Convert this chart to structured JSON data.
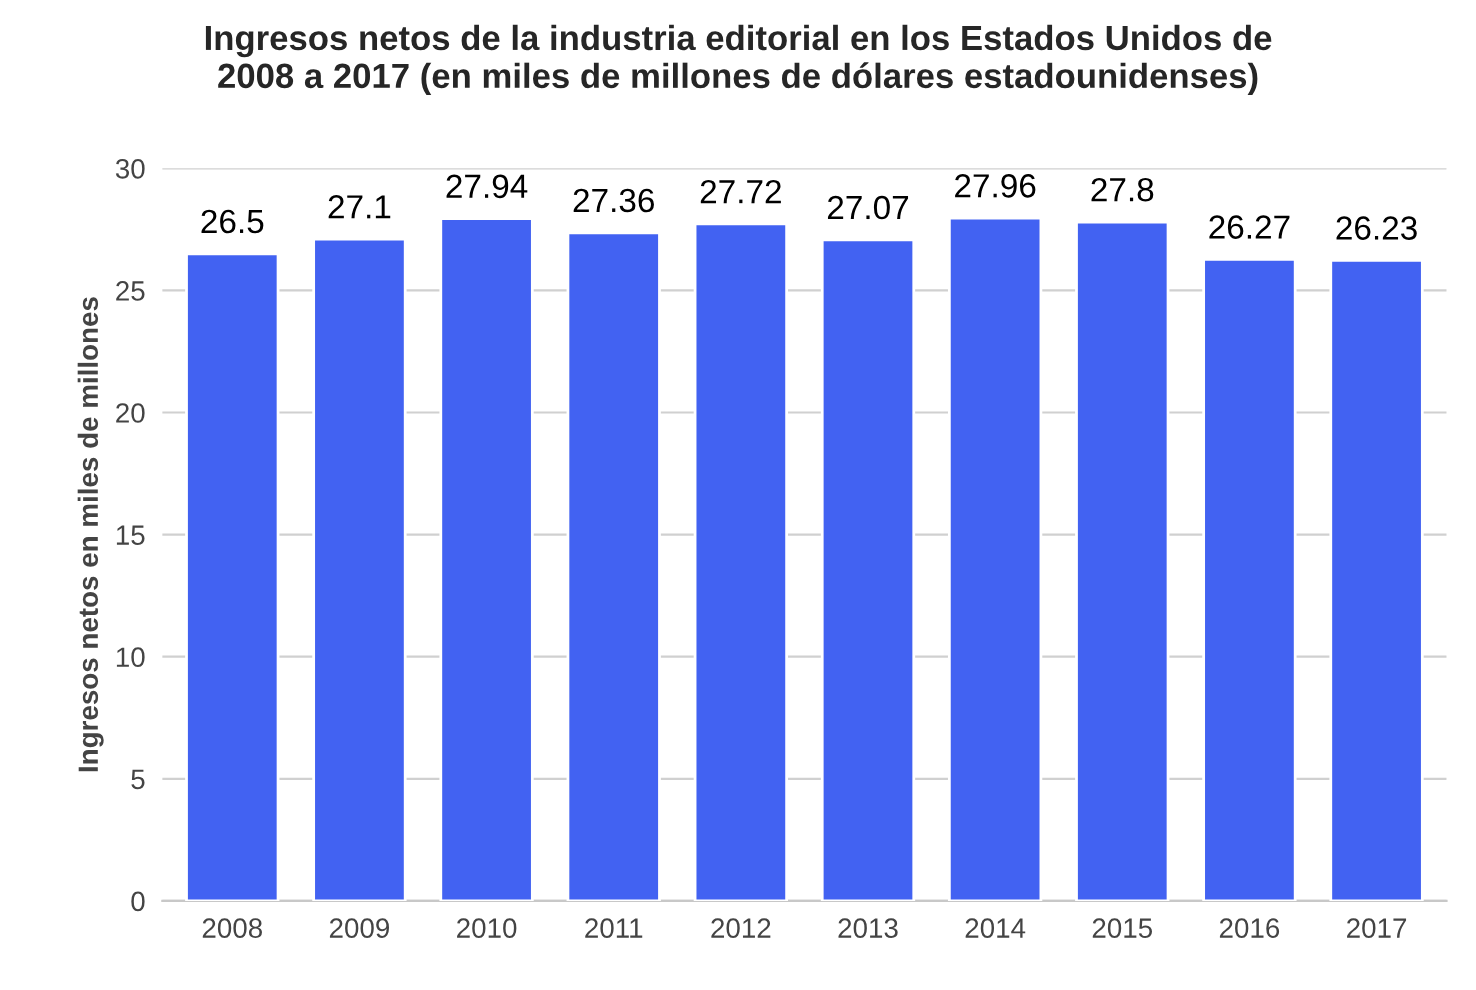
{
  "chart_data": {
    "type": "bar",
    "title": "Ingresos netos de la industria editorial en los Estados Unidos de\n2008 a 2017 (en miles de millones de dólares estadounidenses)",
    "ylabel": "Ingresos netos en miles de millones",
    "categories": [
      "2008",
      "2009",
      "2010",
      "2011",
      "2012",
      "2013",
      "2014",
      "2015",
      "2016",
      "2017"
    ],
    "values": [
      26.5,
      27.1,
      27.94,
      27.36,
      27.72,
      27.07,
      27.96,
      27.8,
      26.27,
      26.23
    ],
    "color": "#4262f2",
    "ylim": [
      0,
      30
    ],
    "yticks": [
      0,
      5,
      10,
      15,
      20,
      25,
      30
    ],
    "grid": "y",
    "data_labels": true,
    "legend": false
  }
}
